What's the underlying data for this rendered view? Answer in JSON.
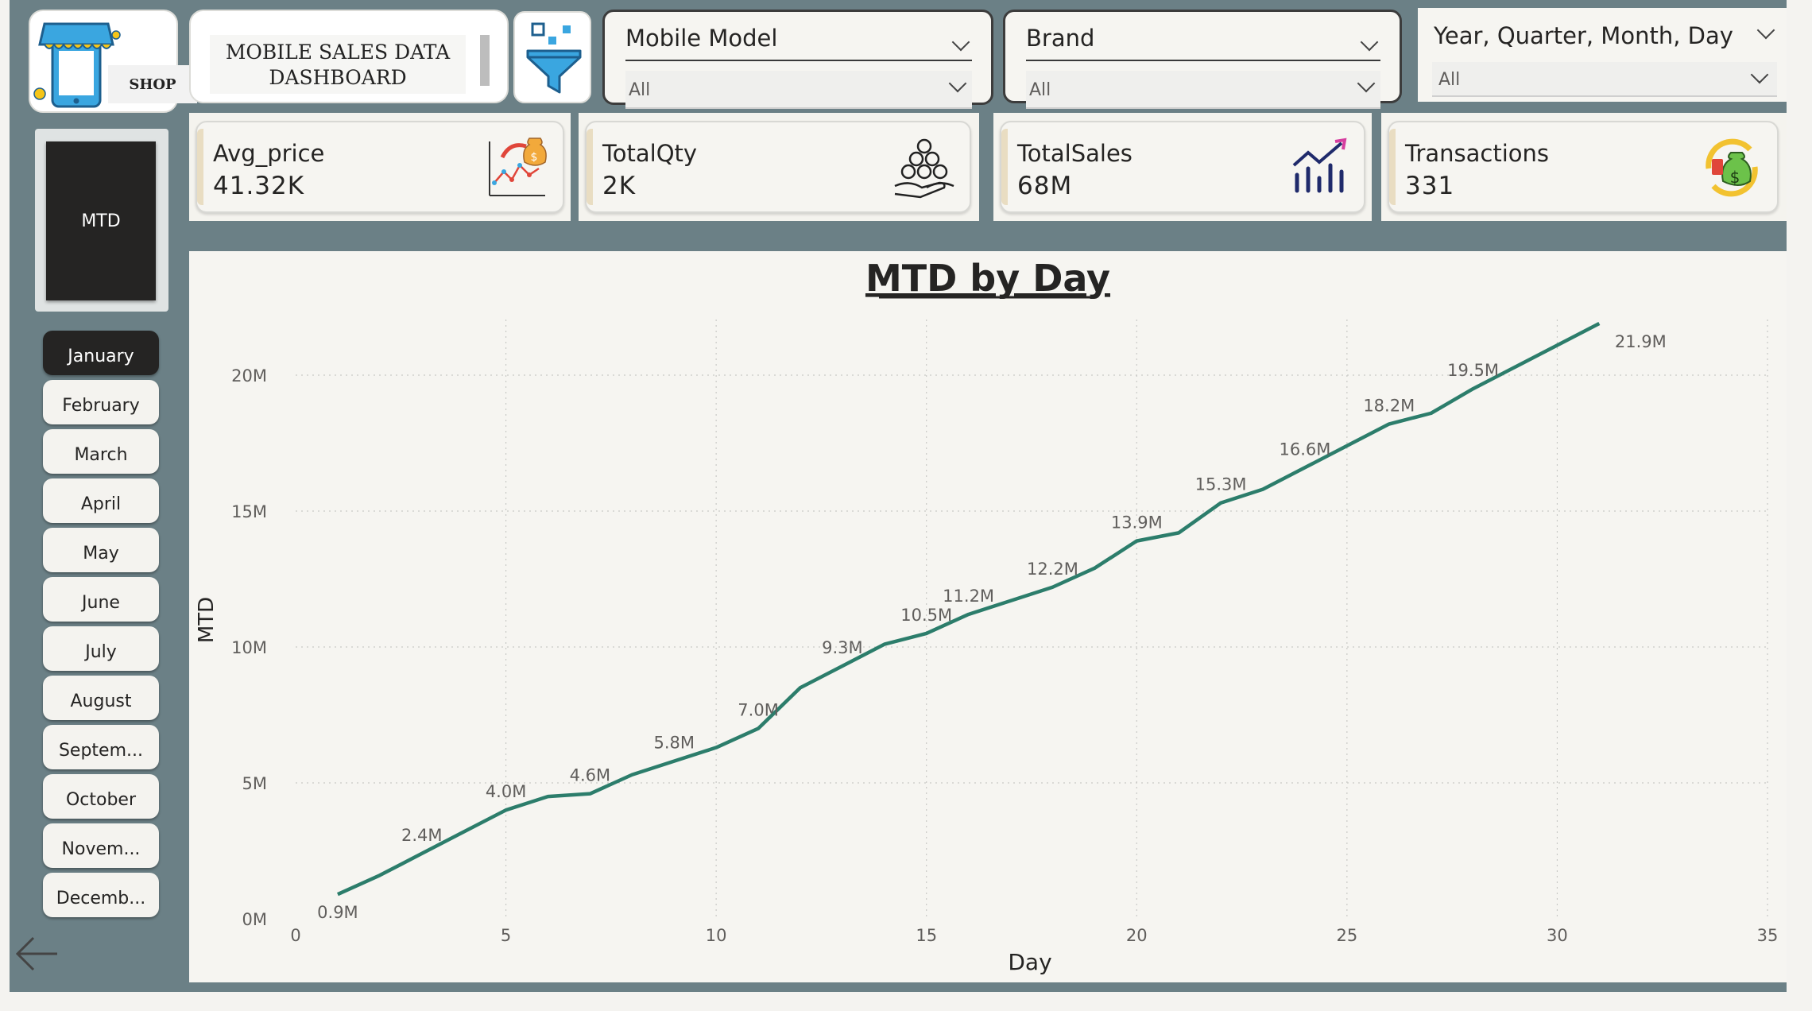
{
  "header": {
    "shop_label": "SHOP",
    "dashboard_title_line1": "MOBILE SALES DATA",
    "dashboard_title_line2": "DASHBOARD"
  },
  "slicers": {
    "mobile_model": {
      "title": "Mobile Model",
      "value": "All"
    },
    "brand": {
      "title": "Brand",
      "value": "All"
    },
    "date": {
      "title": "Year, Quarter, Month, Day",
      "value": "All"
    }
  },
  "kpis": [
    {
      "label": "Avg_price",
      "value": "41.32K",
      "icon": "chart-money-icon"
    },
    {
      "label": "TotalQty",
      "value": "2K",
      "icon": "coins-hand-icon"
    },
    {
      "label": "TotalSales",
      "value": "68M",
      "icon": "growth-bars-icon"
    },
    {
      "label": "Transactions",
      "value": "331",
      "icon": "money-bag-cycle-icon"
    }
  ],
  "sidebar": {
    "mtd_label": "MTD",
    "months": [
      "January",
      "February",
      "March",
      "April",
      "May",
      "June",
      "July",
      "August",
      "Septem...",
      "October",
      "Novem...",
      "Decemb..."
    ],
    "active_month": "January"
  },
  "colors": {
    "line": "#2c7d6b",
    "canvas": "#6b8086",
    "dark": "#252423"
  },
  "chart_data": {
    "type": "line",
    "title": "MTD by Day",
    "xlabel": "Day",
    "ylabel": "MTD",
    "xlim": [
      0,
      35
    ],
    "ylim": [
      0,
      20000000
    ],
    "x_ticks": [
      "0",
      "5",
      "10",
      "15",
      "20",
      "25",
      "30",
      "35"
    ],
    "y_ticks": [
      "0M",
      "5M",
      "10M",
      "15M",
      "20M"
    ],
    "grid": true,
    "series": [
      {
        "x": [
          1,
          2,
          3,
          4,
          5,
          6,
          7,
          8,
          9,
          10,
          11,
          12,
          13,
          14,
          15,
          16,
          17,
          18,
          19,
          20,
          21,
          22,
          23,
          24,
          25,
          26,
          27,
          28,
          29,
          30,
          31
        ],
        "values": [
          0.9,
          1.6,
          2.4,
          3.2,
          4.0,
          4.5,
          4.6,
          5.3,
          5.8,
          6.3,
          7.0,
          8.5,
          9.3,
          10.1,
          10.5,
          11.2,
          11.7,
          12.2,
          12.9,
          13.9,
          14.2,
          15.3,
          15.8,
          16.6,
          17.4,
          18.2,
          18.6,
          19.5,
          20.3,
          21.1,
          21.9
        ],
        "labels": {
          "1": "0.9M",
          "3": "2.4M",
          "5": "4.0M",
          "7": "4.6M",
          "9": "5.8M",
          "11": "7.0M",
          "13": "9.3M",
          "15": "10.5M",
          "16": "11.2M",
          "18": "12.2M",
          "20": "13.9M",
          "22": "15.3M",
          "24": "16.6M",
          "26": "18.2M",
          "28": "19.5M",
          "31": "21.9M"
        },
        "unit_multiplier": 1000000
      }
    ]
  }
}
